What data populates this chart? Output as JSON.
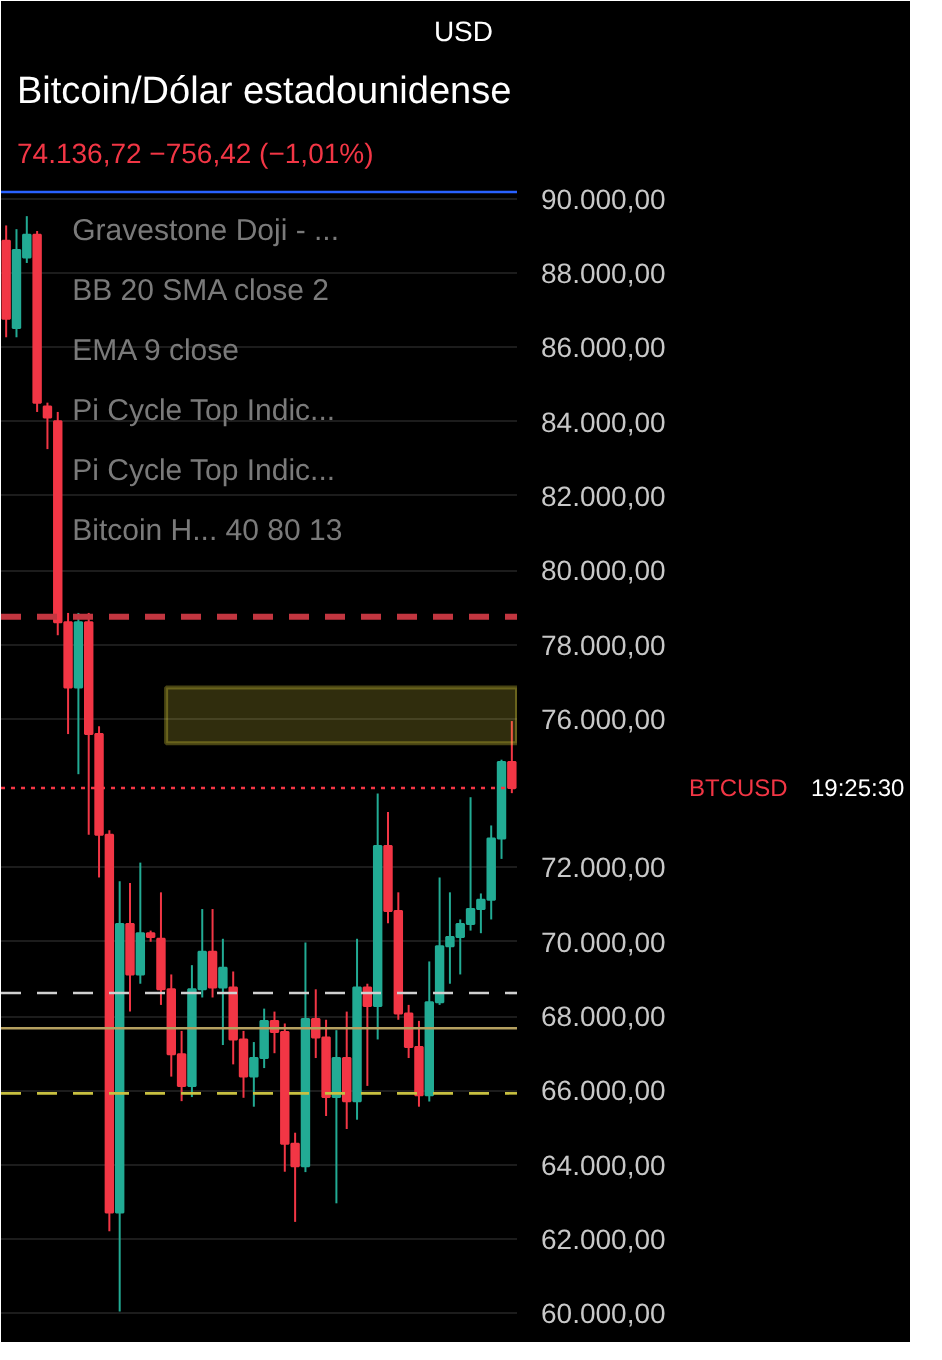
{
  "chart_data": {
    "type": "candlestick",
    "title": "Bitcoin/Dólar estadounidense",
    "subtitle": "74.136,72 −756,42 (−1,01%)",
    "categories": [
      null,
      null,
      null,
      null,
      null,
      null,
      null,
      null,
      null,
      null,
      null,
      null,
      null,
      null,
      null,
      null,
      null,
      null,
      null,
      null,
      null,
      null,
      null,
      null,
      null,
      null,
      null,
      null,
      null,
      null,
      null,
      null,
      null,
      null,
      null,
      null,
      null,
      null,
      null,
      null,
      null,
      null,
      null,
      null,
      null,
      null,
      null,
      null,
      null,
      null
    ],
    "ohlc": [
      [
        88870,
        89280,
        86270,
        86770
      ],
      [
        86520,
        89180,
        86270,
        88620
      ],
      [
        88420,
        89530,
        88270,
        89030
      ],
      [
        89030,
        89130,
        84260,
        84510
      ],
      [
        84410,
        84510,
        83260,
        84110
      ],
      [
        84010,
        84260,
        78250,
        78600
      ],
      [
        78600,
        78850,
        75590,
        76840
      ],
      [
        76840,
        78850,
        74510,
        78600
      ],
      [
        78600,
        78850,
        72880,
        75590
      ],
      [
        75590,
        75800,
        71730,
        72880
      ],
      [
        72880,
        73000,
        62210,
        62710
      ],
      [
        62710,
        71630,
        60050,
        70480
      ],
      [
        70480,
        71580,
        68120,
        69120
      ],
      [
        69120,
        72130,
        68870,
        70230
      ],
      [
        70230,
        70300,
        70000,
        70130
      ],
      [
        70080,
        71330,
        68300,
        68720
      ],
      [
        68720,
        69120,
        66370,
        66970
      ],
      [
        66970,
        67600,
        65710,
        66120
      ],
      [
        66120,
        69370,
        65820,
        68720
      ],
      [
        68720,
        70880,
        68500,
        69730
      ],
      [
        69730,
        70880,
        68500,
        68770
      ],
      [
        68770,
        70080,
        67220,
        69300
      ],
      [
        68770,
        69200,
        66700,
        67370
      ],
      [
        67370,
        67600,
        65800,
        66370
      ],
      [
        66370,
        67300,
        65560,
        66870
      ],
      [
        66870,
        68200,
        66600,
        67870
      ],
      [
        67870,
        68120,
        67000,
        67570
      ],
      [
        67570,
        67800,
        63810,
        64560
      ],
      [
        64560,
        64860,
        62460,
        63960
      ],
      [
        63960,
        69980,
        63800,
        67920
      ],
      [
        67920,
        68720,
        66870,
        67420
      ],
      [
        67420,
        67900,
        65310,
        65820
      ],
      [
        65820,
        67620,
        62960,
        66870
      ],
      [
        66870,
        68120,
        64960,
        65710
      ],
      [
        65710,
        70080,
        65210,
        68770
      ],
      [
        68770,
        68870,
        66120,
        68270
      ],
      [
        68270,
        73990,
        67370,
        72580
      ],
      [
        72580,
        73490,
        70500,
        70830
      ],
      [
        70830,
        71330,
        67900,
        68070
      ],
      [
        68070,
        68300,
        66870,
        67170
      ],
      [
        67170,
        67870,
        65560,
        65870
      ],
      [
        65870,
        69470,
        65700,
        68370
      ],
      [
        68370,
        71730,
        68300,
        69880
      ],
      [
        69880,
        71330,
        68870,
        70130
      ],
      [
        70130,
        70600,
        69120,
        70480
      ],
      [
        70480,
        73890,
        70300,
        70880
      ],
      [
        70880,
        71300,
        70230,
        71130
      ],
      [
        71130,
        73130,
        70600,
        72780
      ],
      [
        72780,
        74900,
        72230,
        74840
      ],
      [
        74840,
        75940,
        74000,
        74140
      ]
    ],
    "colors": [
      "#f23645",
      "#22ab94",
      "#22ab94",
      "#f23645",
      "#f23645",
      "#f23645",
      "#f23645",
      "#22ab94",
      "#f23645",
      "#f23645",
      "#f23645",
      "#22ab94",
      "#f23645",
      "#22ab94",
      "#f23645",
      "#f23645",
      "#f23645",
      "#f23645",
      "#22ab94",
      "#22ab94",
      "#f23645",
      "#22ab94",
      "#f23645",
      "#f23645",
      "#22ab94",
      "#22ab94",
      "#f23645",
      "#f23645",
      "#f23645",
      "#22ab94",
      "#f23645",
      "#f23645",
      "#22ab94",
      "#f23645",
      "#22ab94",
      "#f23645",
      "#22ab94",
      "#f23645",
      "#f23645",
      "#f23645",
      "#f23645",
      "#22ab94",
      "#22ab94",
      "#22ab94",
      "#22ab94",
      "#22ab94",
      "#22ab94",
      "#22ab94",
      "#22ab94",
      "#f23645"
    ],
    "ylim": [
      59200,
      90530
    ],
    "yticks": [
      {
        "value": 60000,
        "label": "60.000,00"
      },
      {
        "value": 62000,
        "label": "62.000,00"
      },
      {
        "value": 64000,
        "label": "64.000,00"
      },
      {
        "value": 66000,
        "label": "66.000,00"
      },
      {
        "value": 68000,
        "label": "68.000,00"
      },
      {
        "value": 70000,
        "label": "70.000,00"
      },
      {
        "value": 72000,
        "label": "72.000,00"
      },
      {
        "value": 76000,
        "label": "76.000,00"
      },
      {
        "value": 78000,
        "label": "78.000,00"
      },
      {
        "value": 80000,
        "label": "80.000,00"
      },
      {
        "value": 82000,
        "label": "82.000,00"
      },
      {
        "value": 84000,
        "label": "84.000,00"
      },
      {
        "value": 86000,
        "label": "86.000,00"
      },
      {
        "value": 88000,
        "label": "88.000,00"
      },
      {
        "value": 90000,
        "label": "90.000,00"
      }
    ],
    "tick_labels": "y",
    "grid": "y",
    "ref_lines": [
      {
        "axis": "y",
        "value": 90180,
        "color": "#2962ff",
        "line_style": "solid"
      },
      {
        "axis": "y",
        "value": 78750,
        "color": "#c23640",
        "line_style": "dashed"
      },
      {
        "axis": "y",
        "value": 74140,
        "color": "#f23645",
        "line_style": "dotted"
      },
      {
        "axis": "y",
        "value": 68620,
        "color": "#d0d0d0",
        "line_style": "dashed"
      },
      {
        "axis": "y",
        "value": 67670,
        "color": "#b5a060",
        "line_style": "solid"
      },
      {
        "axis": "y",
        "value": 65920,
        "color": "#c8c040",
        "line_style": "dashed"
      }
    ],
    "bands": [
      {
        "axis": "y",
        "from": 75340,
        "to": 76840,
        "color": "#f0e040"
      }
    ],
    "annotations": [
      "Gravestone Doji - ...",
      "BB 20 SMA close 2",
      "EMA 9 close",
      "Pi Cycle Top Indic...",
      "Pi Cycle Top Indic...",
      "Bitcoin H...  40 80 13",
      "BTCUSD",
      "19:25:30",
      "USD"
    ]
  }
}
